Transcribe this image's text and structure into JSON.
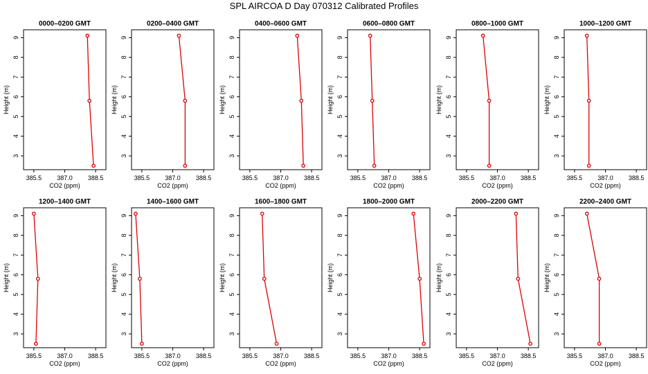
{
  "title": "SPL AIRCOA D  Day 070312  Calibrated Profiles",
  "colors": {
    "series": "#dd0000",
    "axis": "#000000"
  },
  "chart_data": [
    {
      "type": "line",
      "title": "0000–0200 GMT",
      "xlabel": "CO2 (ppm)",
      "ylabel": "Height (m)",
      "xlim": [
        385.0,
        389.0
      ],
      "ylim": [
        2.3,
        9.4
      ],
      "xticks": [
        "385.5",
        "387.0",
        "388.5"
      ],
      "yticks": [
        "3",
        "4",
        "5",
        "6",
        "7",
        "8",
        "9"
      ],
      "series": [
        {
          "x": [
            388.4,
            388.2,
            388.1
          ],
          "y": [
            2.5,
            5.8,
            9.1
          ]
        }
      ]
    },
    {
      "type": "line",
      "title": "0200–0400 GMT",
      "xlabel": "CO2 (ppm)",
      "ylabel": "Height (m)",
      "xlim": [
        385.0,
        389.0
      ],
      "ylim": [
        2.3,
        9.4
      ],
      "xticks": [
        "385.5",
        "387.0",
        "388.5"
      ],
      "yticks": [
        "3",
        "4",
        "5",
        "6",
        "7",
        "8",
        "9"
      ],
      "series": [
        {
          "x": [
            387.6,
            387.6,
            387.3
          ],
          "y": [
            2.5,
            5.8,
            9.1
          ]
        }
      ]
    },
    {
      "type": "line",
      "title": "0400–0600 GMT",
      "xlabel": "CO2 (ppm)",
      "ylabel": "Height (m)",
      "xlim": [
        385.0,
        389.0
      ],
      "ylim": [
        2.3,
        9.4
      ],
      "xticks": [
        "385.5",
        "387.0",
        "388.5"
      ],
      "yticks": [
        "3",
        "4",
        "5",
        "6",
        "7",
        "8",
        "9"
      ],
      "series": [
        {
          "x": [
            388.1,
            388.0,
            387.8
          ],
          "y": [
            2.5,
            5.8,
            9.1
          ]
        }
      ]
    },
    {
      "type": "line",
      "title": "0600–0800 GMT",
      "xlabel": "CO2 (ppm)",
      "ylabel": "Height (m)",
      "xlim": [
        385.0,
        389.0
      ],
      "ylim": [
        2.3,
        9.4
      ],
      "xticks": [
        "385.5",
        "387.0",
        "388.5"
      ],
      "yticks": [
        "3",
        "4",
        "5",
        "6",
        "7",
        "8",
        "9"
      ],
      "series": [
        {
          "x": [
            386.3,
            386.2,
            386.1
          ],
          "y": [
            2.5,
            5.8,
            9.1
          ]
        }
      ]
    },
    {
      "type": "line",
      "title": "0800–1000 GMT",
      "xlabel": "CO2 (ppm)",
      "ylabel": "Height (m)",
      "xlim": [
        385.0,
        389.0
      ],
      "ylim": [
        2.3,
        9.4
      ],
      "xticks": [
        "385.5",
        "387.0",
        "388.5"
      ],
      "yticks": [
        "3",
        "4",
        "5",
        "6",
        "7",
        "8",
        "9"
      ],
      "series": [
        {
          "x": [
            386.6,
            386.6,
            386.3
          ],
          "y": [
            2.5,
            5.8,
            9.1
          ]
        }
      ]
    },
    {
      "type": "line",
      "title": "1000–1200 GMT",
      "xlabel": "CO2 (ppm)",
      "ylabel": "Height (m)",
      "xlim": [
        385.0,
        389.0
      ],
      "ylim": [
        2.3,
        9.4
      ],
      "xticks": [
        "385.5",
        "387.0",
        "388.5"
      ],
      "yticks": [
        "3",
        "4",
        "5",
        "6",
        "7",
        "8",
        "9"
      ],
      "series": [
        {
          "x": [
            386.2,
            386.2,
            386.1
          ],
          "y": [
            2.5,
            5.8,
            9.1
          ]
        }
      ]
    },
    {
      "type": "line",
      "title": "1200–1400 GMT",
      "xlabel": "CO2 (ppm)",
      "ylabel": "Height (m)",
      "xlim": [
        385.0,
        389.0
      ],
      "ylim": [
        2.3,
        9.4
      ],
      "xticks": [
        "385.5",
        "387.0",
        "388.5"
      ],
      "yticks": [
        "3",
        "4",
        "5",
        "6",
        "7",
        "8",
        "9"
      ],
      "series": [
        {
          "x": [
            385.6,
            385.7,
            385.5
          ],
          "y": [
            2.5,
            5.8,
            9.1
          ]
        }
      ]
    },
    {
      "type": "line",
      "title": "1400–1600 GMT",
      "xlabel": "CO2 (ppm)",
      "ylabel": "Height (m)",
      "xlim": [
        385.0,
        389.0
      ],
      "ylim": [
        2.3,
        9.4
      ],
      "xticks": [
        "385.5",
        "387.0",
        "388.5"
      ],
      "yticks": [
        "3",
        "4",
        "5",
        "6",
        "7",
        "8",
        "9"
      ],
      "series": [
        {
          "x": [
            385.5,
            385.4,
            385.2
          ],
          "y": [
            2.5,
            5.8,
            9.1
          ]
        }
      ]
    },
    {
      "type": "line",
      "title": "1600–1800 GMT",
      "xlabel": "CO2 (ppm)",
      "ylabel": "Height (m)",
      "xlim": [
        385.0,
        389.0
      ],
      "ylim": [
        2.3,
        9.4
      ],
      "xticks": [
        "385.5",
        "387.0",
        "388.5"
      ],
      "yticks": [
        "3",
        "4",
        "5",
        "6",
        "7",
        "8",
        "9"
      ],
      "series": [
        {
          "x": [
            386.8,
            386.2,
            386.1
          ],
          "y": [
            2.5,
            5.8,
            9.1
          ]
        }
      ]
    },
    {
      "type": "line",
      "title": "1800–2000 GMT",
      "xlabel": "CO2 (ppm)",
      "ylabel": "Height (m)",
      "xlim": [
        385.0,
        389.0
      ],
      "ylim": [
        2.3,
        9.4
      ],
      "xticks": [
        "385.5",
        "387.0",
        "388.5"
      ],
      "yticks": [
        "3",
        "4",
        "5",
        "6",
        "7",
        "8",
        "9"
      ],
      "series": [
        {
          "x": [
            388.7,
            388.5,
            388.2
          ],
          "y": [
            2.5,
            5.8,
            9.1
          ]
        }
      ]
    },
    {
      "type": "line",
      "title": "2000–2200 GMT",
      "xlabel": "CO2 (ppm)",
      "ylabel": "Height (m)",
      "xlim": [
        385.0,
        389.0
      ],
      "ylim": [
        2.3,
        9.4
      ],
      "xticks": [
        "385.5",
        "387.0",
        "388.5"
      ],
      "yticks": [
        "3",
        "4",
        "5",
        "6",
        "7",
        "8",
        "9"
      ],
      "series": [
        {
          "x": [
            388.6,
            388.0,
            387.9
          ],
          "y": [
            2.5,
            5.8,
            9.1
          ]
        }
      ]
    },
    {
      "type": "line",
      "title": "2200–2400 GMT",
      "xlabel": "CO2 (ppm)",
      "ylabel": "Height (m)",
      "xlim": [
        385.0,
        389.0
      ],
      "ylim": [
        2.3,
        9.4
      ],
      "xticks": [
        "385.5",
        "387.0",
        "388.5"
      ],
      "yticks": [
        "3",
        "4",
        "5",
        "6",
        "7",
        "8",
        "9"
      ],
      "series": [
        {
          "x": [
            386.7,
            386.7,
            386.1
          ],
          "y": [
            2.5,
            5.8,
            9.1
          ]
        }
      ]
    }
  ]
}
